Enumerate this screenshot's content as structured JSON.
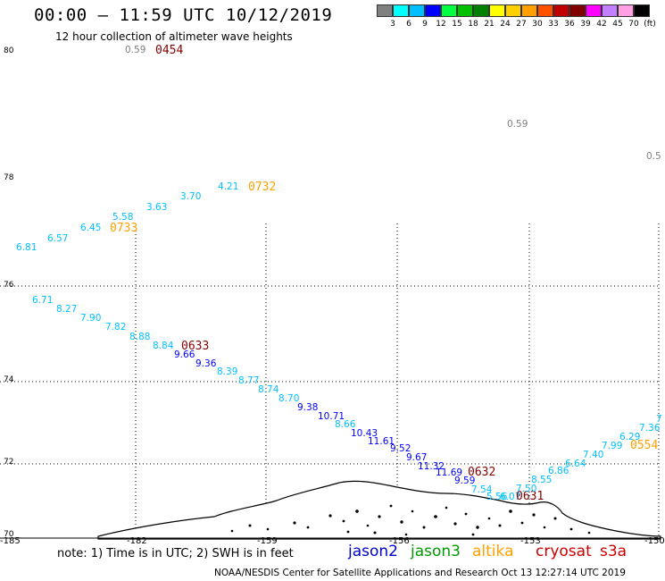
{
  "title": "00:00 – 11:59 UTC 10/12/2019",
  "subtitle": "12 hour collection of altimeter wave heights",
  "color_scale": {
    "labels": [
      "3",
      "6",
      "9",
      "12",
      "15",
      "18",
      "21",
      "24",
      "27",
      "30",
      "33",
      "36",
      "39",
      "42",
      "45",
      "70",
      "(ft)"
    ],
    "colors": [
      "#808080",
      "#00ffff",
      "#00bfff",
      "#0000ff",
      "#00ff40",
      "#00c000",
      "#008000",
      "#ffff00",
      "#ffd000",
      "#ffa000",
      "#ff5000",
      "#c00000",
      "#800000",
      "#ff00ff",
      "#c080ff",
      "#ffa0e0",
      "#000000"
    ]
  },
  "lat_labels": [
    "80",
    "78",
    "76",
    "74",
    "72",
    "70"
  ],
  "lon_labels": [
    "-185",
    "-182",
    "-159",
    "-156",
    "-153",
    "-150"
  ],
  "observations": [
    {
      "text": "0.59",
      "color": "#808080"
    },
    {
      "text": "0454",
      "color": "#800000"
    },
    {
      "text": "0.59",
      "color": "#808080"
    },
    {
      "text": "0.5",
      "color": "#808080"
    },
    {
      "text": "4.21",
      "color": "#00bfff"
    },
    {
      "text": "0732",
      "color": "#ffa000"
    },
    {
      "text": "3.70",
      "color": "#00bfff"
    },
    {
      "text": "3.63",
      "color": "#00bfff"
    },
    {
      "text": "5.58",
      "color": "#00bfff"
    },
    {
      "text": "0733",
      "color": "#ffa000"
    },
    {
      "text": "6.45",
      "color": "#00bfff"
    },
    {
      "text": "6.57",
      "color": "#00bfff"
    },
    {
      "text": "6.81",
      "color": "#00bfff"
    },
    {
      "text": "6.71",
      "color": "#00bfff"
    },
    {
      "text": "8.27",
      "color": "#00bfff"
    },
    {
      "text": "7.90",
      "color": "#00bfff"
    },
    {
      "text": "7.82",
      "color": "#00bfff"
    },
    {
      "text": "8.88",
      "color": "#00bfff"
    },
    {
      "text": "8.84",
      "color": "#00bfff"
    },
    {
      "text": "0633",
      "color": "#800000"
    },
    {
      "text": "9.66",
      "color": "#0000ff"
    },
    {
      "text": "9.36",
      "color": "#0000ff"
    },
    {
      "text": "8.39",
      "color": "#00bfff"
    },
    {
      "text": "8.77",
      "color": "#00bfff"
    },
    {
      "text": "8.74",
      "color": "#00bfff"
    },
    {
      "text": "8.70",
      "color": "#00bfff"
    },
    {
      "text": "9.38",
      "color": "#0000ff"
    },
    {
      "text": "10.71",
      "color": "#0000ff"
    },
    {
      "text": "8.66",
      "color": "#00bfff"
    },
    {
      "text": "10.43",
      "color": "#0000ff"
    },
    {
      "text": "11.61",
      "color": "#0000ff"
    },
    {
      "text": "9.52",
      "color": "#0000ff"
    },
    {
      "text": "9.67",
      "color": "#0000ff"
    },
    {
      "text": "11.32",
      "color": "#0000ff"
    },
    {
      "text": "11.69",
      "color": "#0000ff"
    },
    {
      "text": "0632",
      "color": "#800000"
    },
    {
      "text": "9.59",
      "color": "#0000ff"
    },
    {
      "text": "7.54",
      "color": "#00bfff"
    },
    {
      "text": "5.56",
      "color": "#00bfff"
    },
    {
      "text": "6.07",
      "color": "#00bfff"
    },
    {
      "text": "0631",
      "color": "#800000"
    },
    {
      "text": "7.50",
      "color": "#00bfff"
    },
    {
      "text": "8.55",
      "color": "#00bfff"
    },
    {
      "text": "6.86",
      "color": "#00bfff"
    },
    {
      "text": "6.64",
      "color": "#00bfff"
    },
    {
      "text": "7.40",
      "color": "#00bfff"
    },
    {
      "text": "7.99",
      "color": "#00bfff"
    },
    {
      "text": "6.29",
      "color": "#00bfff"
    },
    {
      "text": "0554",
      "color": "#ffa000"
    },
    {
      "text": "7.36",
      "color": "#00bfff"
    },
    {
      "text": "7",
      "color": "#00bfff"
    }
  ],
  "note": "note: 1) Time is in UTC; 2) SWH is in feet",
  "satellites": [
    {
      "name": "jason2",
      "color": "#0000cc"
    },
    {
      "name": "jason3",
      "color": "#009900"
    },
    {
      "name": "altika",
      "color": "#ffa000"
    },
    {
      "name": "cryosat",
      "color": "#cc0000"
    },
    {
      "name": "s3a",
      "color": "#cc0000"
    }
  ],
  "footer": "NOAA/NESDIS Center for Satellite Applications and Research    Oct 13 12:27:14 UTC 2019"
}
